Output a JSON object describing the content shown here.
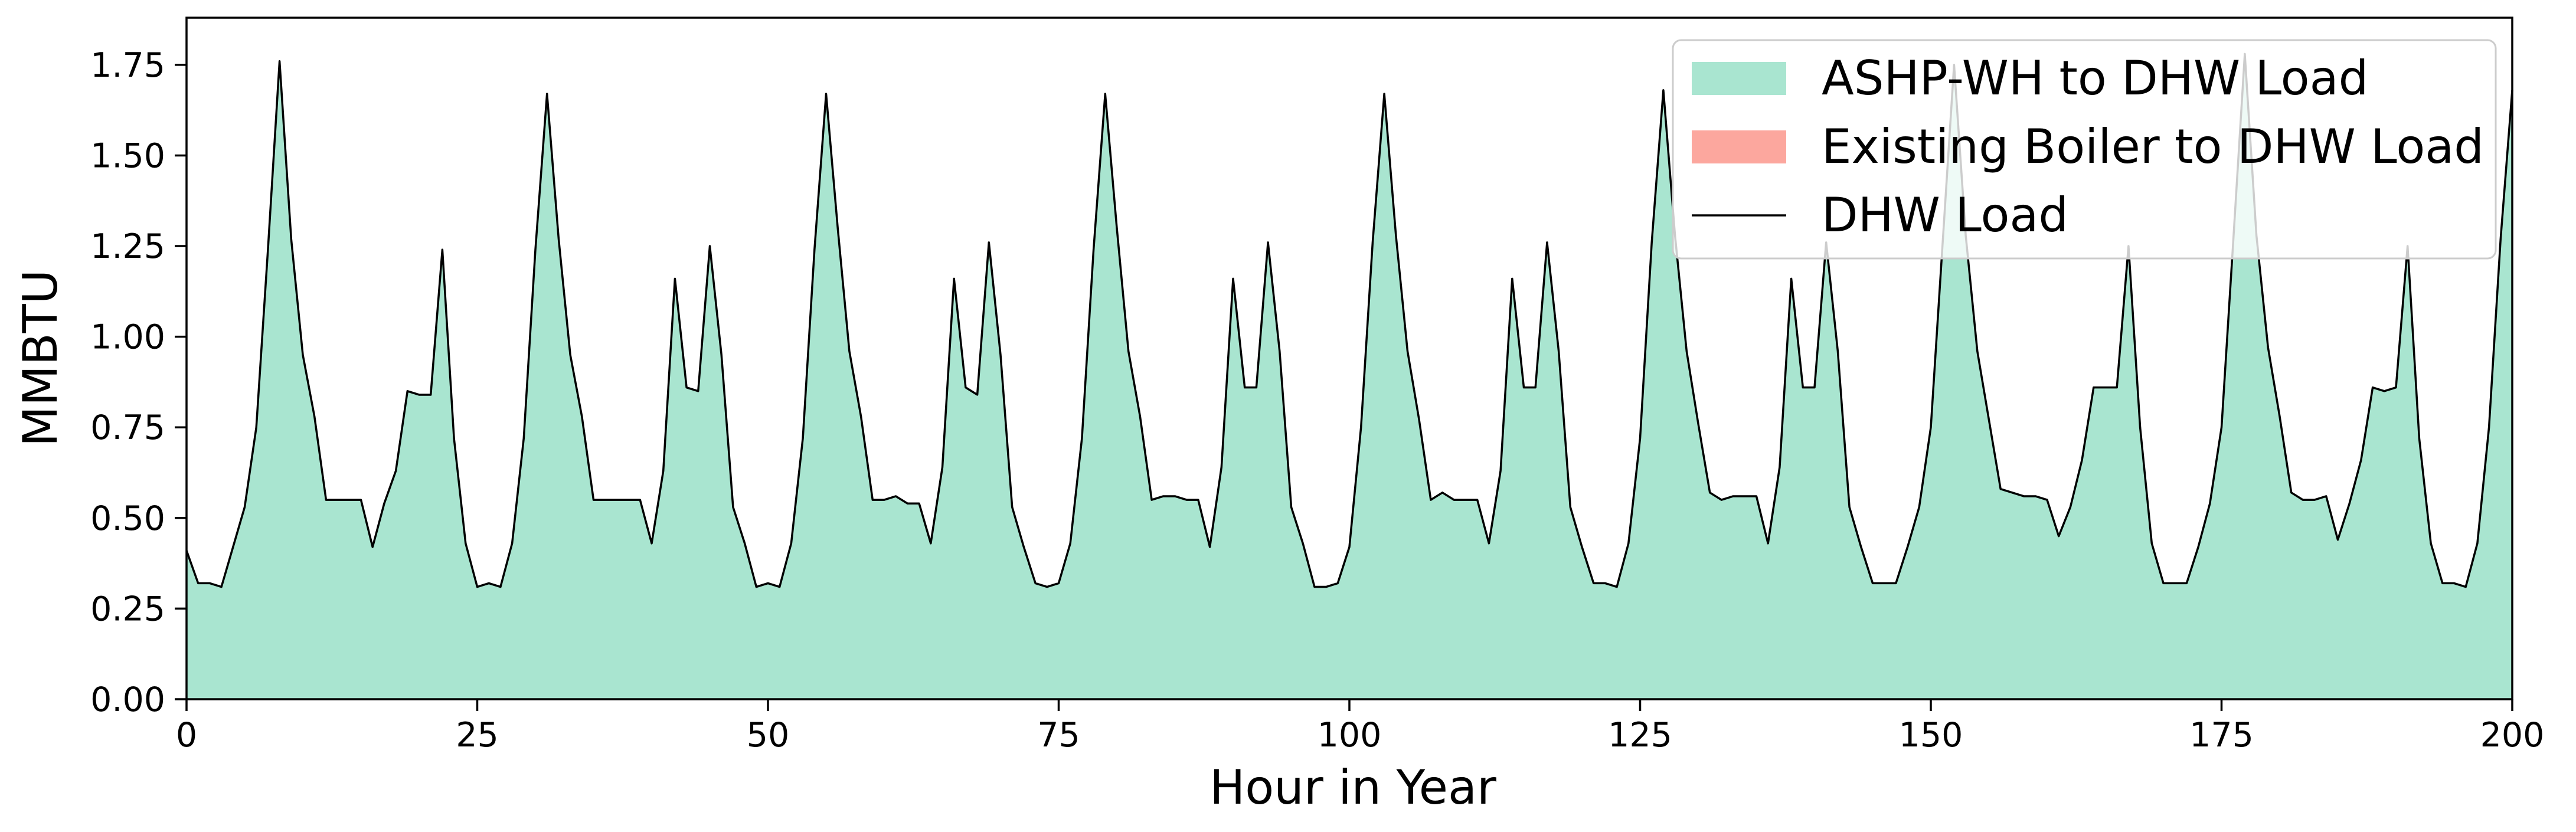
{
  "chart_data": {
    "type": "area",
    "title": "",
    "xlabel": "Hour in Year",
    "ylabel": "MMBTU",
    "xlim": [
      0,
      200
    ],
    "ylim": [
      0,
      1.88
    ],
    "grid": false,
    "legend_position": "top-right",
    "x_ticks": [
      0,
      25,
      50,
      75,
      100,
      125,
      150,
      175,
      200
    ],
    "x_tick_labels": [
      "0",
      "25",
      "50",
      "75",
      "100",
      "125",
      "150",
      "175",
      "200"
    ],
    "y_ticks": [
      0,
      0.25,
      0.5,
      0.75,
      1.0,
      1.25,
      1.5,
      1.75
    ],
    "y_tick_labels": [
      "0.00",
      "0.25",
      "0.50",
      "0.75",
      "1.00",
      "1.25",
      "1.50",
      "1.75"
    ],
    "series": [
      {
        "name": "ASHP-WH to DHW Load",
        "kind": "stacked-area",
        "color": "#a9e5d0",
        "values": [
          0.41,
          0.32,
          0.32,
          0.31,
          0.42,
          0.53,
          0.75,
          1.24,
          1.76,
          1.27,
          0.95,
          0.78,
          0.55,
          0.55,
          0.55,
          0.55,
          0.42,
          0.54,
          0.63,
          0.85,
          0.84,
          0.84,
          1.24,
          0.72,
          0.43,
          0.31,
          0.32,
          0.31,
          0.43,
          0.72,
          1.24,
          1.67,
          1.27,
          0.95,
          0.78,
          0.55,
          0.55,
          0.55,
          0.55,
          0.55,
          0.43,
          0.63,
          1.16,
          0.86,
          0.85,
          1.25,
          0.95,
          0.53,
          0.43,
          0.31,
          0.32,
          0.31,
          0.43,
          0.72,
          1.24,
          1.67,
          1.3,
          0.96,
          0.78,
          0.55,
          0.55,
          0.56,
          0.54,
          0.54,
          0.43,
          0.64,
          1.16,
          0.86,
          0.84,
          1.26,
          0.95,
          0.53,
          0.42,
          0.32,
          0.31,
          0.32,
          0.43,
          0.72,
          1.24,
          1.67,
          1.3,
          0.96,
          0.78,
          0.55,
          0.56,
          0.56,
          0.55,
          0.55,
          0.42,
          0.64,
          1.16,
          0.86,
          0.86,
          1.26,
          0.96,
          0.53,
          0.43,
          0.31,
          0.31,
          0.32,
          0.42,
          0.75,
          1.26,
          1.67,
          1.28,
          0.96,
          0.77,
          0.55,
          0.57,
          0.55,
          0.55,
          0.55,
          0.43,
          0.63,
          1.16,
          0.86,
          0.86,
          1.26,
          0.96,
          0.53,
          0.42,
          0.32,
          0.32,
          0.31,
          0.43,
          0.72,
          1.26,
          1.68,
          1.28,
          0.96,
          0.76,
          0.57,
          0.55,
          0.56,
          0.56,
          0.56,
          0.43,
          0.64,
          1.16,
          0.86,
          0.86,
          1.26,
          0.96,
          0.53,
          0.42,
          0.32,
          0.32,
          0.32,
          0.42,
          0.53,
          0.75,
          1.25,
          1.75,
          1.28,
          0.96,
          0.77,
          0.58,
          0.57,
          0.56,
          0.56,
          0.55,
          0.45,
          0.53,
          0.66,
          0.86,
          0.86,
          0.86,
          1.25,
          0.75,
          0.43,
          0.32,
          0.32,
          0.32,
          0.42,
          0.54,
          0.75,
          1.26,
          1.78,
          1.28,
          0.97,
          0.78,
          0.57,
          0.55,
          0.55,
          0.56,
          0.44,
          0.54,
          0.66,
          0.86,
          0.85,
          0.86,
          1.25,
          0.72,
          0.43,
          0.32,
          0.32,
          0.31,
          0.43,
          0.75,
          1.27,
          1.68
        ]
      },
      {
        "name": "Existing Boiler to DHW Load",
        "kind": "stacked-area",
        "color": "#fca79e",
        "values": []
      },
      {
        "name": "DHW Load",
        "kind": "line",
        "color": "#000000",
        "values": []
      }
    ]
  }
}
